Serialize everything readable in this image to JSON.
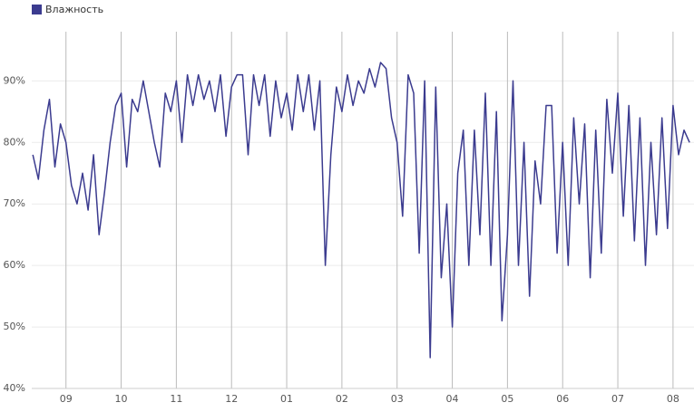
{
  "chart_data": {
    "type": "line",
    "x": [
      -0.6,
      -0.5,
      -0.4,
      -0.3,
      -0.2,
      -0.1,
      0,
      0.1,
      0.2,
      0.3,
      0.4,
      0.5,
      0.6,
      0.7,
      0.8,
      0.9,
      1,
      1.1,
      1.2,
      1.3,
      1.4,
      1.5,
      1.6,
      1.7,
      1.8,
      1.9,
      2,
      2.1,
      2.2,
      2.3,
      2.4,
      2.5,
      2.6,
      2.7,
      2.8,
      2.9,
      3,
      3.1,
      3.2,
      3.3,
      3.4,
      3.5,
      3.6,
      3.7,
      3.8,
      3.9,
      4,
      4.1,
      4.2,
      4.3,
      4.4,
      4.5,
      4.6,
      4.7,
      4.8,
      4.9,
      5,
      5.1,
      5.2,
      5.3,
      5.4,
      5.5,
      5.6,
      5.7,
      5.8,
      5.9,
      6,
      6.1,
      6.2,
      6.3,
      6.4,
      6.5,
      6.6,
      6.7,
      6.8,
      6.9,
      7,
      7.1,
      7.2,
      7.3,
      7.4,
      7.5,
      7.6,
      7.7,
      7.8,
      7.9,
      8,
      8.1,
      8.2,
      8.3,
      8.4,
      8.5,
      8.6,
      8.7,
      8.8,
      8.9,
      9,
      9.1,
      9.2,
      9.3,
      9.4,
      9.5,
      9.6,
      9.7,
      9.8,
      9.9,
      10,
      10.1,
      10.2,
      10.3,
      10.4,
      10.5,
      10.6,
      10.7,
      10.8,
      10.9,
      11,
      11.1,
      11.2,
      11.3
    ],
    "series": [
      {
        "name": "Влажность",
        "color": "#3b3b8f",
        "values": [
          78,
          74,
          82,
          87,
          76,
          83,
          80,
          73,
          70,
          75,
          69,
          78,
          65,
          72,
          80,
          86,
          88,
          76,
          87,
          85,
          90,
          85,
          80,
          76,
          88,
          85,
          90,
          80,
          91,
          86,
          91,
          87,
          90,
          85,
          91,
          81,
          89,
          91,
          91,
          78,
          91,
          86,
          91,
          81,
          90,
          84,
          88,
          82,
          91,
          85,
          91,
          82,
          90,
          60,
          78,
          89,
          85,
          91,
          86,
          90,
          88,
          92,
          89,
          93,
          92,
          84,
          80,
          68,
          91,
          88,
          62,
          90,
          45,
          89,
          58,
          70,
          50,
          75,
          82,
          60,
          82,
          65,
          88,
          60,
          85,
          51,
          65,
          90,
          60,
          80,
          55,
          77,
          70,
          86,
          86,
          62,
          80,
          60,
          84,
          70,
          83,
          58,
          82,
          62,
          87,
          75,
          88,
          68,
          86,
          64,
          84,
          60,
          80,
          65,
          84,
          66,
          86,
          78,
          82,
          80
        ]
      }
    ],
    "xlim": [
      -0.62,
      11.38
    ],
    "xticks": [
      {
        "value": 0,
        "label": "09"
      },
      {
        "value": 1,
        "label": "10"
      },
      {
        "value": 2,
        "label": "11"
      },
      {
        "value": 3,
        "label": "12"
      },
      {
        "value": 4,
        "label": "01"
      },
      {
        "value": 5,
        "label": "02"
      },
      {
        "value": 6,
        "label": "03"
      },
      {
        "value": 7,
        "label": "04"
      },
      {
        "value": 8,
        "label": "05"
      },
      {
        "value": 9,
        "label": "06"
      },
      {
        "value": 10,
        "label": "07"
      },
      {
        "value": 11,
        "label": "08"
      }
    ],
    "ylim": [
      40,
      98
    ],
    "yticks": [
      {
        "value": 40,
        "label": "40%"
      },
      {
        "value": 50,
        "label": "50%"
      },
      {
        "value": 60,
        "label": "60%"
      },
      {
        "value": 70,
        "label": "70%"
      },
      {
        "value": 80,
        "label": "80%"
      },
      {
        "value": 90,
        "label": "90%"
      }
    ],
    "grid": true
  }
}
